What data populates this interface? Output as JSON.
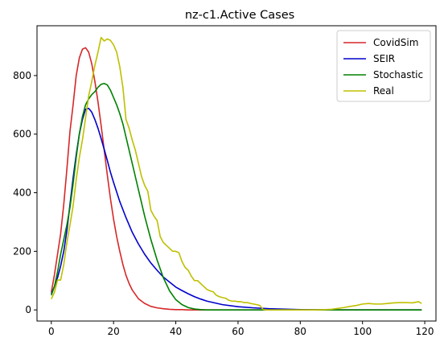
{
  "chart_data": {
    "type": "line",
    "title": "nz-c1.Active Cases",
    "xlabel": "",
    "ylabel": "",
    "xlim": [
      -4.6,
      123.6
    ],
    "ylim": [
      -38,
      970
    ],
    "xticks": [
      0,
      20,
      40,
      60,
      80,
      100,
      120
    ],
    "yticks": [
      0,
      200,
      400,
      600,
      800
    ],
    "grid": false,
    "legend_position": "top-right",
    "series": [
      {
        "name": "CovidSim",
        "color": "#d62728",
        "x": [
          0,
          1,
          2,
          3,
          4,
          5,
          6,
          7,
          8,
          9,
          10,
          11,
          12,
          13,
          14,
          15,
          16,
          17,
          18,
          19,
          20,
          21,
          22,
          23,
          24,
          25,
          26,
          28,
          30,
          32,
          34,
          36,
          38,
          40,
          42,
          44,
          46,
          48,
          50,
          52,
          55,
          60,
          70,
          80,
          90,
          100,
          110,
          119
        ],
        "y": [
          60,
          120,
          190,
          260,
          360,
          480,
          610,
          700,
          800,
          860,
          890,
          895,
          880,
          840,
          780,
          710,
          630,
          545,
          460,
          380,
          310,
          250,
          200,
          155,
          118,
          90,
          68,
          38,
          22,
          12,
          7,
          4,
          2,
          1,
          1,
          0,
          0,
          0,
          0,
          0,
          0,
          0,
          0,
          0,
          0,
          0,
          0,
          0
        ]
      },
      {
        "name": "SEIR",
        "color": "#0000cc",
        "x": [
          0,
          1,
          2,
          3,
          4,
          5,
          6,
          7,
          8,
          9,
          10,
          11,
          12,
          13,
          14,
          15,
          16,
          17,
          18,
          19,
          20,
          22,
          24,
          26,
          28,
          30,
          32,
          34,
          36,
          38,
          40,
          42,
          44,
          46,
          48,
          50,
          55,
          60,
          65,
          70,
          80,
          90,
          100,
          110,
          119
        ],
        "y": [
          55,
          80,
          110,
          150,
          200,
          270,
          360,
          450,
          530,
          600,
          650,
          685,
          688,
          675,
          650,
          620,
          585,
          548,
          510,
          470,
          435,
          370,
          315,
          265,
          225,
          190,
          160,
          135,
          112,
          95,
          78,
          66,
          55,
          45,
          37,
          30,
          18,
          11,
          7,
          4,
          1,
          0,
          0,
          0,
          0
        ]
      },
      {
        "name": "Stochastic",
        "color": "#008000",
        "x": [
          0,
          1,
          2,
          3,
          4,
          5,
          6,
          7,
          8,
          9,
          10,
          11,
          12,
          13,
          14,
          15,
          16,
          17,
          18,
          19,
          20,
          21,
          22,
          23,
          24,
          25,
          26,
          27,
          28,
          30,
          32,
          34,
          36,
          38,
          40,
          42,
          44,
          46,
          48,
          50,
          55,
          60,
          70,
          80,
          90,
          100,
          110,
          119
        ],
        "y": [
          50,
          80,
          130,
          190,
          240,
          290,
          350,
          430,
          520,
          600,
          660,
          700,
          720,
          735,
          745,
          760,
          770,
          773,
          768,
          750,
          725,
          700,
          670,
          635,
          590,
          545,
          500,
          455,
          410,
          320,
          240,
          170,
          110,
          65,
          35,
          18,
          8,
          3,
          1,
          0,
          0,
          0,
          0,
          0,
          0,
          0,
          0,
          0
        ]
      },
      {
        "name": "Real",
        "color": "#bfbf00",
        "x": [
          0,
          1,
          2,
          3,
          4,
          5,
          6,
          7,
          8,
          9,
          10,
          11,
          12,
          13,
          14,
          15,
          16,
          17,
          18,
          19,
          20,
          21,
          22,
          23,
          24,
          25,
          26,
          27,
          28,
          29,
          30,
          31,
          32,
          33,
          34,
          35,
          36,
          37,
          38,
          39,
          40,
          41,
          42,
          43,
          44,
          45,
          46,
          47,
          48,
          49,
          50,
          51,
          52,
          53,
          54,
          55,
          56,
          57,
          58,
          59,
          60,
          61,
          62,
          63,
          64,
          65,
          66,
          67,
          68,
          69,
          70,
          75,
          80,
          85,
          88,
          90,
          92,
          94,
          96,
          98,
          100,
          102,
          104,
          106,
          108,
          110,
          112,
          114,
          116,
          117,
          118,
          119
        ],
        "y": [
          37,
          60,
          102,
          102,
          155,
          230,
          290,
          355,
          445,
          520,
          580,
          655,
          730,
          780,
          835,
          880,
          930,
          918,
          925,
          920,
          905,
          880,
          830,
          760,
          650,
          620,
          580,
          545,
          500,
          455,
          425,
          405,
          340,
          320,
          305,
          250,
          230,
          220,
          210,
          200,
          200,
          195,
          165,
          145,
          135,
          115,
          100,
          100,
          90,
          80,
          70,
          65,
          62,
          50,
          45,
          42,
          40,
          33,
          30,
          30,
          28,
          28,
          25,
          25,
          22,
          20,
          18,
          15,
          2,
          0,
          0,
          0,
          0,
          0,
          1,
          2,
          5,
          8,
          12,
          15,
          20,
          22,
          20,
          20,
          22,
          24,
          25,
          25,
          24,
          26,
          28,
          22
        ]
      }
    ]
  }
}
